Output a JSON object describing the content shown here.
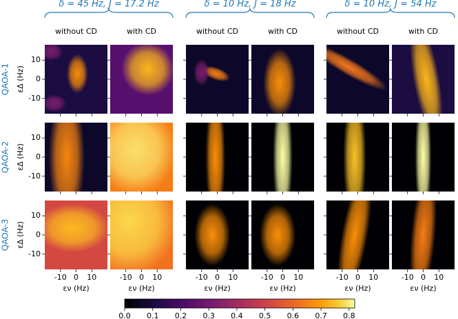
{
  "chart_data": {
    "type": "heatmap",
    "groups": [
      {
        "title": "δ = 45 Hz,   J = 17.2 Hz",
        "columns": [
          "without CD",
          "with CD"
        ]
      },
      {
        "title": "δ = 10 Hz,   J = 18 Hz",
        "columns": [
          "without CD",
          "with CD"
        ]
      },
      {
        "title": "δ = 10 Hz,   J = 54 Hz",
        "columns": [
          "without CD",
          "with CD"
        ]
      }
    ],
    "rows": [
      "QAOA-1",
      "QAOA-2",
      "QAOA-3"
    ],
    "x_label": "εν (Hz)",
    "y_label": "εΔ (Hz)",
    "xlim": [
      -20,
      20
    ],
    "xticks": [
      -10,
      0,
      10
    ],
    "ylim": [
      -18,
      18
    ],
    "yticks": [
      10,
      0,
      -10
    ],
    "colormap": "inferno",
    "clim": [
      0,
      0.82
    ],
    "cticks": [
      {
        "value": 0,
        "label": "0.0"
      },
      {
        "value": 0.1,
        "label": "0.1"
      },
      {
        "value": 0.2,
        "label": "0.2"
      },
      {
        "value": 0.3,
        "label": "0.3"
      },
      {
        "value": 0.4,
        "label": "0.4"
      },
      {
        "value": 0.5,
        "label": "0.5"
      },
      {
        "value": 0.6,
        "label": "0.6"
      },
      {
        "value": 0.7,
        "label": "0.7"
      },
      {
        "value": 0.8,
        "label": "0.8"
      }
    ]
  }
}
